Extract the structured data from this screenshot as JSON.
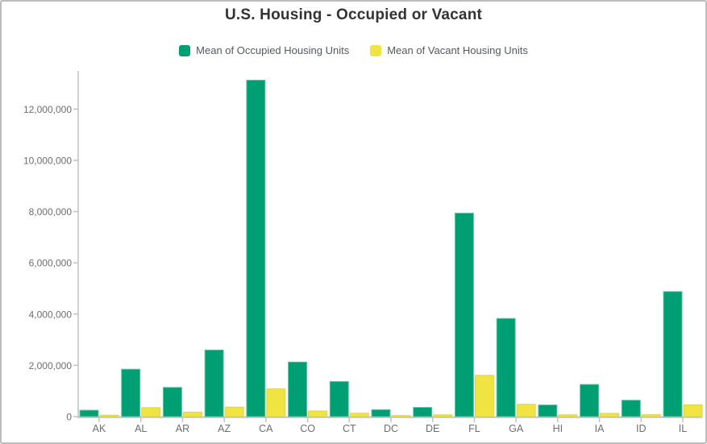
{
  "title": "U.S. Housing - Occupied or Vacant",
  "legend": [
    {
      "label": "Mean of Occupied Housing Units",
      "color": "#009E73"
    },
    {
      "label": "Mean of Vacant Housing Units",
      "color": "#F0E442"
    }
  ],
  "chart_data": {
    "type": "bar",
    "title": "U.S. Housing - Occupied or Vacant",
    "categories": [
      "AK",
      "AL",
      "AR",
      "AZ",
      "CA",
      "CO",
      "CT",
      "DC",
      "DE",
      "FL",
      "GA",
      "HI",
      "IA",
      "ID",
      "IL"
    ],
    "series": [
      {
        "name": "Mean of Occupied Housing Units",
        "color": "#009E73",
        "edge_color": "#66c4a4",
        "values": [
          250000,
          1850000,
          1140000,
          2600000,
          13130000,
          2130000,
          1370000,
          270000,
          360000,
          7940000,
          3830000,
          455000,
          1255000,
          640000,
          4880000
        ]
      },
      {
        "name": "Mean of Vacant Housing Units",
        "color": "#F0E442",
        "edge_color": "#ddd34e",
        "values": [
          55000,
          350000,
          175000,
          370000,
          1080000,
          220000,
          130000,
          40000,
          70000,
          1610000,
          480000,
          70000,
          125000,
          75000,
          460000
        ]
      }
    ],
    "xlabel": "",
    "ylabel": "",
    "ylim": [
      0,
      13500000
    ],
    "yticks": [
      0,
      2000000,
      4000000,
      6000000,
      8000000,
      10000000,
      12000000
    ],
    "grid": false,
    "legend_position": "top",
    "axis_color": "#c2c2c2",
    "tick_label_color": "#6e6e6e"
  }
}
